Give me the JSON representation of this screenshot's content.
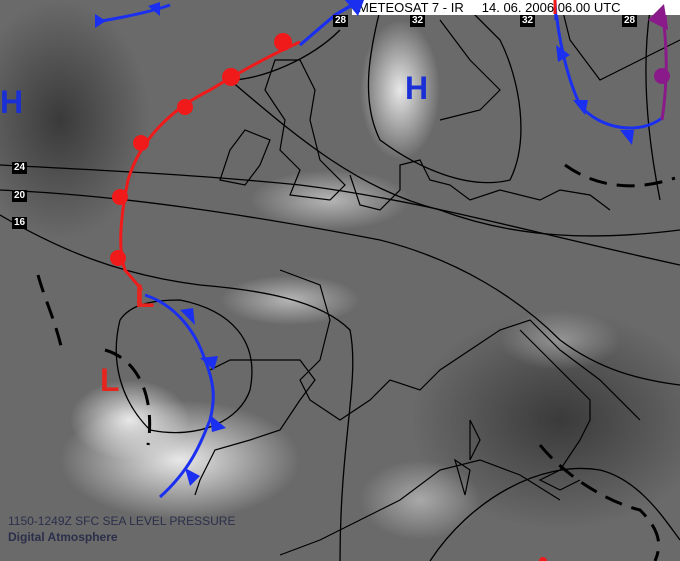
{
  "header": {
    "satellite": "METEOSAT 7 - IR",
    "date": "14. 06. 2006",
    "time": "06.00 UTC"
  },
  "pressure_centers": [
    {
      "type": "H",
      "color": "#1a2fd6"
    },
    {
      "type": "H",
      "color": "#1a2fd6"
    },
    {
      "type": "L",
      "color": "#e5251e"
    },
    {
      "type": "L",
      "color": "#e5251e"
    }
  ],
  "isobar_labels": {
    "left": [
      "24",
      "20",
      "16"
    ],
    "top": [
      "28",
      "32",
      "32",
      "28"
    ]
  },
  "fronts": {
    "warm": "#f01a1a",
    "cold": "#1a2ff0",
    "occluded": "#8a1a8a",
    "trough": "#000000"
  },
  "caption": {
    "line1": "1150-1249Z SFC SEA LEVEL PRESSURE",
    "line2": "Digital Atmosphere"
  }
}
